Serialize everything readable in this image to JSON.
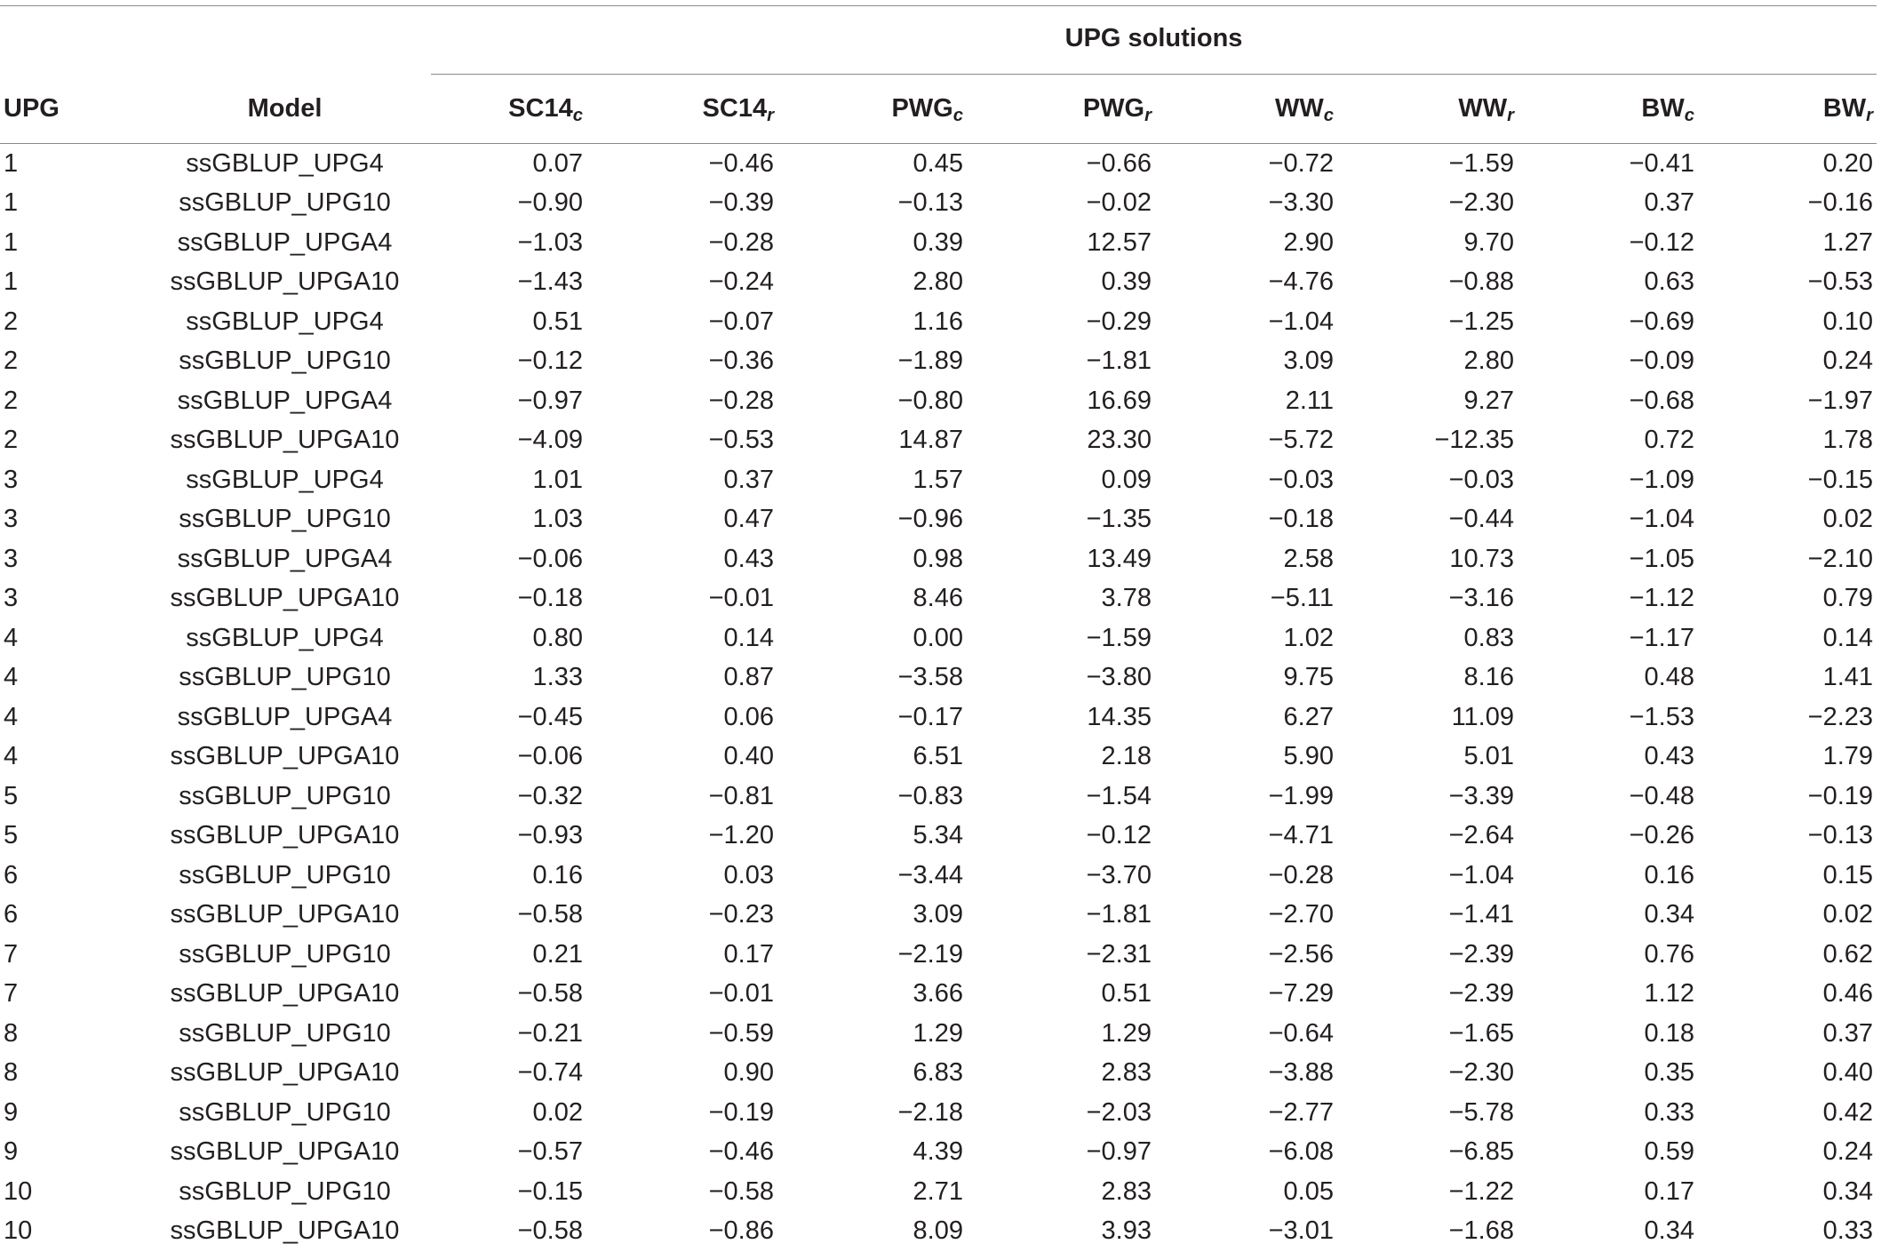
{
  "table": {
    "group_header": "UPG solutions",
    "columns": {
      "upg": "UPG",
      "model": "Model",
      "traits": [
        {
          "base": "SC14",
          "sub": "c"
        },
        {
          "base": "SC14",
          "sub": "r"
        },
        {
          "base": "PWG",
          "sub": "c"
        },
        {
          "base": "PWG",
          "sub": "r"
        },
        {
          "base": "WW",
          "sub": "c"
        },
        {
          "base": "WW",
          "sub": "r"
        },
        {
          "base": "BW",
          "sub": "c"
        },
        {
          "base": "BW",
          "sub": "r"
        }
      ]
    },
    "rows": [
      {
        "upg": "1",
        "model": "ssGBLUP_UPG4",
        "values": [
          "0.07",
          "−0.46",
          "0.45",
          "−0.66",
          "−0.72",
          "−1.59",
          "−0.41",
          "0.20"
        ]
      },
      {
        "upg": "1",
        "model": "ssGBLUP_UPG10",
        "values": [
          "−0.90",
          "−0.39",
          "−0.13",
          "−0.02",
          "−3.30",
          "−2.30",
          "0.37",
          "−0.16"
        ]
      },
      {
        "upg": "1",
        "model": "ssGBLUP_UPGA4",
        "values": [
          "−1.03",
          "−0.28",
          "0.39",
          "12.57",
          "2.90",
          "9.70",
          "−0.12",
          "1.27"
        ]
      },
      {
        "upg": "1",
        "model": "ssGBLUP_UPGA10",
        "values": [
          "−1.43",
          "−0.24",
          "2.80",
          "0.39",
          "−4.76",
          "−0.88",
          "0.63",
          "−0.53"
        ]
      },
      {
        "upg": "2",
        "model": "ssGBLUP_UPG4",
        "values": [
          "0.51",
          "−0.07",
          "1.16",
          "−0.29",
          "−1.04",
          "−1.25",
          "−0.69",
          "0.10"
        ]
      },
      {
        "upg": "2",
        "model": "ssGBLUP_UPG10",
        "values": [
          "−0.12",
          "−0.36",
          "−1.89",
          "−1.81",
          "3.09",
          "2.80",
          "−0.09",
          "0.24"
        ]
      },
      {
        "upg": "2",
        "model": "ssGBLUP_UPGA4",
        "values": [
          "−0.97",
          "−0.28",
          "−0.80",
          "16.69",
          "2.11",
          "9.27",
          "−0.68",
          "−1.97"
        ]
      },
      {
        "upg": "2",
        "model": "ssGBLUP_UPGA10",
        "values": [
          "−4.09",
          "−0.53",
          "14.87",
          "23.30",
          "−5.72",
          "−12.35",
          "0.72",
          "1.78"
        ]
      },
      {
        "upg": "3",
        "model": "ssGBLUP_UPG4",
        "values": [
          "1.01",
          "0.37",
          "1.57",
          "0.09",
          "−0.03",
          "−0.03",
          "−1.09",
          "−0.15"
        ]
      },
      {
        "upg": "3",
        "model": "ssGBLUP_UPG10",
        "values": [
          "1.03",
          "0.47",
          "−0.96",
          "−1.35",
          "−0.18",
          "−0.44",
          "−1.04",
          "0.02"
        ]
      },
      {
        "upg": "3",
        "model": "ssGBLUP_UPGA4",
        "values": [
          "−0.06",
          "0.43",
          "0.98",
          "13.49",
          "2.58",
          "10.73",
          "−1.05",
          "−2.10"
        ]
      },
      {
        "upg": "3",
        "model": "ssGBLUP_UPGA10",
        "values": [
          "−0.18",
          "−0.01",
          "8.46",
          "3.78",
          "−5.11",
          "−3.16",
          "−1.12",
          "0.79"
        ]
      },
      {
        "upg": "4",
        "model": "ssGBLUP_UPG4",
        "values": [
          "0.80",
          "0.14",
          "0.00",
          "−1.59",
          "1.02",
          "0.83",
          "−1.17",
          "0.14"
        ]
      },
      {
        "upg": "4",
        "model": "ssGBLUP_UPG10",
        "values": [
          "1.33",
          "0.87",
          "−3.58",
          "−3.80",
          "9.75",
          "8.16",
          "0.48",
          "1.41"
        ]
      },
      {
        "upg": "4",
        "model": "ssGBLUP_UPGA4",
        "values": [
          "−0.45",
          "0.06",
          "−0.17",
          "14.35",
          "6.27",
          "11.09",
          "−1.53",
          "−2.23"
        ]
      },
      {
        "upg": "4",
        "model": "ssGBLUP_UPGA10",
        "values": [
          "−0.06",
          "0.40",
          "6.51",
          "2.18",
          "5.90",
          "5.01",
          "0.43",
          "1.79"
        ]
      },
      {
        "upg": "5",
        "model": "ssGBLUP_UPG10",
        "values": [
          "−0.32",
          "−0.81",
          "−0.83",
          "−1.54",
          "−1.99",
          "−3.39",
          "−0.48",
          "−0.19"
        ]
      },
      {
        "upg": "5",
        "model": "ssGBLUP_UPGA10",
        "values": [
          "−0.93",
          "−1.20",
          "5.34",
          "−0.12",
          "−4.71",
          "−2.64",
          "−0.26",
          "−0.13"
        ]
      },
      {
        "upg": "6",
        "model": "ssGBLUP_UPG10",
        "values": [
          "0.16",
          "0.03",
          "−3.44",
          "−3.70",
          "−0.28",
          "−1.04",
          "0.16",
          "0.15"
        ]
      },
      {
        "upg": "6",
        "model": "ssGBLUP_UPGA10",
        "values": [
          "−0.58",
          "−0.23",
          "3.09",
          "−1.81",
          "−2.70",
          "−1.41",
          "0.34",
          "0.02"
        ]
      },
      {
        "upg": "7",
        "model": "ssGBLUP_UPG10",
        "values": [
          "0.21",
          "0.17",
          "−2.19",
          "−2.31",
          "−2.56",
          "−2.39",
          "0.76",
          "0.62"
        ]
      },
      {
        "upg": "7",
        "model": "ssGBLUP_UPGA10",
        "values": [
          "−0.58",
          "−0.01",
          "3.66",
          "0.51",
          "−7.29",
          "−2.39",
          "1.12",
          "0.46"
        ]
      },
      {
        "upg": "8",
        "model": "ssGBLUP_UPG10",
        "values": [
          "−0.21",
          "−0.59",
          "1.29",
          "1.29",
          "−0.64",
          "−1.65",
          "0.18",
          "0.37"
        ]
      },
      {
        "upg": "8",
        "model": "ssGBLUP_UPGA10",
        "values": [
          "−0.74",
          "0.90",
          "6.83",
          "2.83",
          "−3.88",
          "−2.30",
          "0.35",
          "0.40"
        ]
      },
      {
        "upg": "9",
        "model": "ssGBLUP_UPG10",
        "values": [
          "0.02",
          "−0.19",
          "−2.18",
          "−2.03",
          "−2.77",
          "−5.78",
          "0.33",
          "0.42"
        ]
      },
      {
        "upg": "9",
        "model": "ssGBLUP_UPGA10",
        "values": [
          "−0.57",
          "−0.46",
          "4.39",
          "−0.97",
          "−6.08",
          "−6.85",
          "0.59",
          "0.24"
        ]
      },
      {
        "upg": "10",
        "model": "ssGBLUP_UPG10",
        "values": [
          "−0.15",
          "−0.58",
          "2.71",
          "2.83",
          "0.05",
          "−1.22",
          "0.17",
          "0.34"
        ]
      },
      {
        "upg": "10",
        "model": "ssGBLUP_UPGA10",
        "values": [
          "−0.58",
          "−0.86",
          "8.09",
          "3.93",
          "−3.01",
          "−1.68",
          "0.34",
          "0.33"
        ]
      }
    ]
  }
}
